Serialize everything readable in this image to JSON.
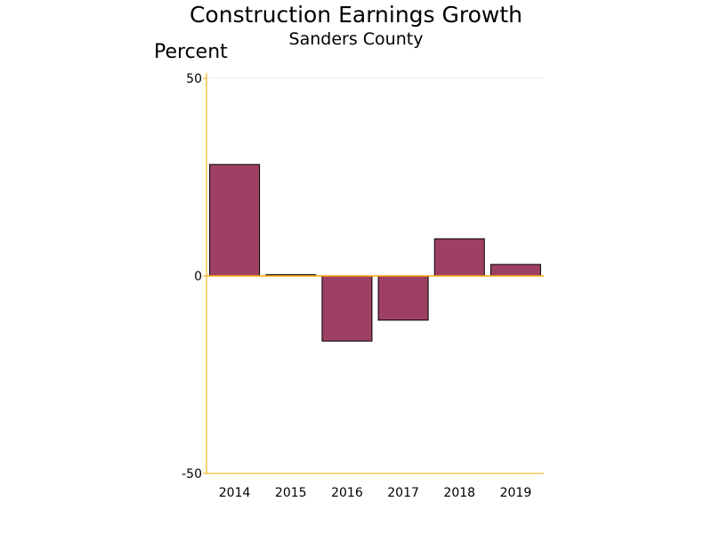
{
  "chart_data": {
    "type": "bar",
    "title": "Construction Earnings Growth",
    "subtitle": "Sanders County",
    "ylabel": "Percent",
    "xlabel": "",
    "categories": [
      "2014",
      "2015",
      "2016",
      "2017",
      "2018",
      "2019"
    ],
    "values": [
      28.2,
      0.3,
      -16.5,
      -11.2,
      9.4,
      2.9
    ],
    "ylim": [
      -50,
      50
    ],
    "yticks": [
      50,
      0,
      -50
    ],
    "grid": "horizontal",
    "legend": "none"
  },
  "colors": {
    "bar": "#9e4064",
    "bar_outline": "#000000",
    "axis": "#f5a800",
    "grid": "#e8e8e8"
  }
}
